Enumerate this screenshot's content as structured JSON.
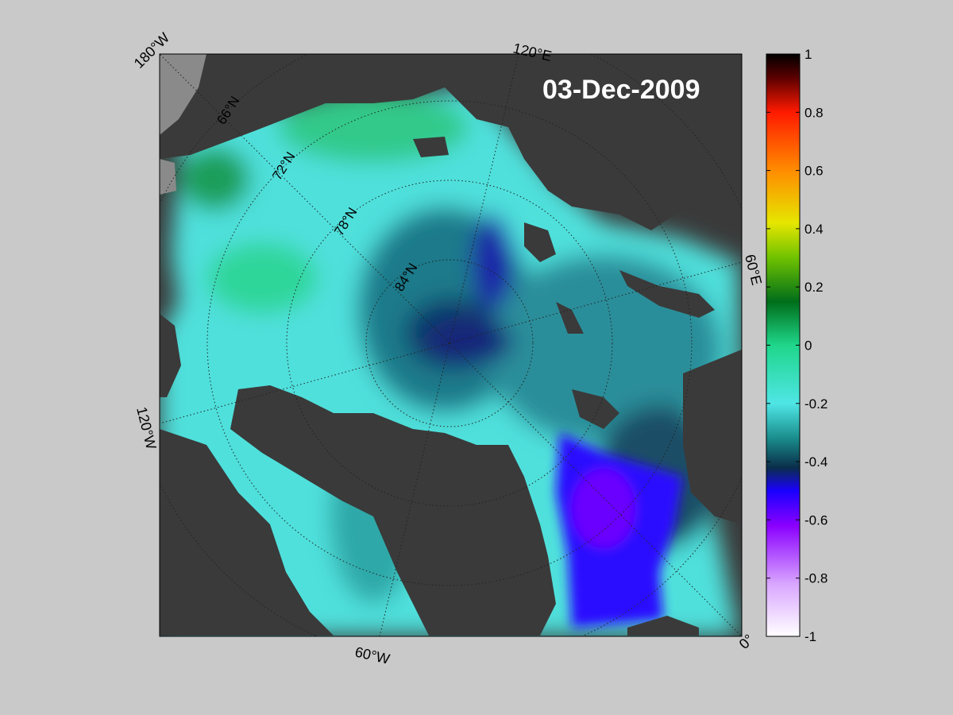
{
  "map": {
    "date": "03-Dec-2009",
    "projection": "north polar stereographic",
    "lon_labels": {
      "w180": "180°W",
      "e120": "120°E",
      "e60": "60°E",
      "zero": "0°",
      "w120": "120°W",
      "w60": "60°W"
    },
    "lat_labels": [
      "66°N",
      "72°N",
      "78°N",
      "84°N"
    ],
    "colors": {
      "background": "#c9c9c9",
      "land": "#3a3a3a",
      "coast_fringe": "#8a8a8a"
    }
  },
  "colorbar": {
    "min": -1,
    "max": 1,
    "tick_labels": [
      "1",
      "0.8",
      "0.6",
      "0.4",
      "0.2",
      "0",
      "-0.2",
      "-0.4",
      "-0.6",
      "-0.8",
      "-1"
    ],
    "colormap_stops": [
      {
        "v": 1.0,
        "color": "#000000"
      },
      {
        "v": 0.92,
        "color": "#5a0000"
      },
      {
        "v": 0.8,
        "color": "#ff1a00"
      },
      {
        "v": 0.6,
        "color": "#ff8c00"
      },
      {
        "v": 0.42,
        "color": "#e6e600"
      },
      {
        "v": 0.3,
        "color": "#6fc200"
      },
      {
        "v": 0.15,
        "color": "#006e1a"
      },
      {
        "v": 0.0,
        "color": "#1fd68a"
      },
      {
        "v": -0.2,
        "color": "#4fe6e6"
      },
      {
        "v": -0.32,
        "color": "#1a8c8c"
      },
      {
        "v": -0.42,
        "color": "#0a2e4a"
      },
      {
        "v": -0.5,
        "color": "#1a00ff"
      },
      {
        "v": -0.62,
        "color": "#8a00ff"
      },
      {
        "v": -0.82,
        "color": "#d9a6ff"
      },
      {
        "v": -1.0,
        "color": "#ffffff"
      }
    ]
  }
}
